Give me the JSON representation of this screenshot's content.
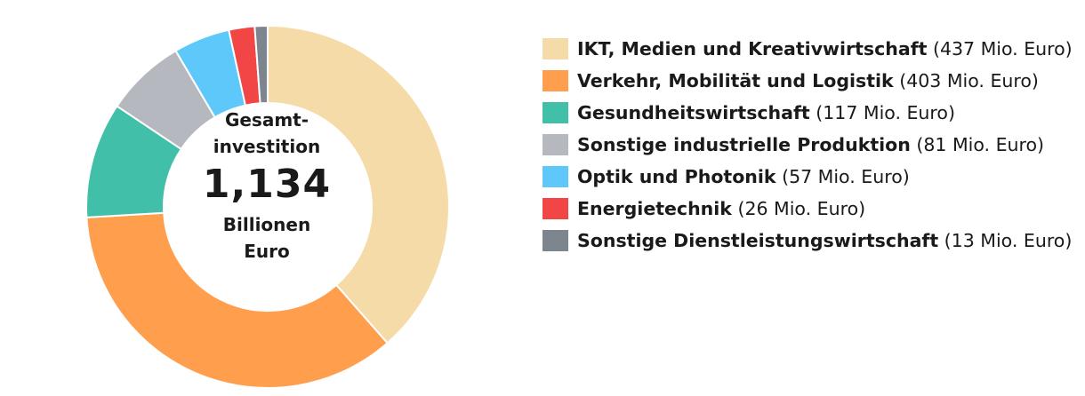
{
  "chart_data": {
    "type": "pie",
    "donut": true,
    "center": {
      "label_line1": "Gesamt-",
      "label_line2": "investition",
      "value": "1,134",
      "unit_line1": "Billionen",
      "unit_line2": "Euro"
    },
    "legend_position": "right",
    "series": [
      {
        "name": "IKT, Medien und Kreativwirtschaft",
        "value": 437,
        "value_label": "(437 Mio. Euro)",
        "color": "#F5DBA8"
      },
      {
        "name": "Verkehr, Mobilität und Logistik",
        "value": 403,
        "value_label": "(403 Mio. Euro)",
        "color": "#FF9E4C"
      },
      {
        "name": "Gesundheitswirtschaft",
        "value": 117,
        "value_label": "(117 Mio. Euro)",
        "color": "#42BFA8"
      },
      {
        "name": "Sonstige industrielle Produktion",
        "value": 81,
        "value_label": "(81 Mio. Euro)",
        "color": "#B5B9BF"
      },
      {
        "name": "Optik und Photonik",
        "value": 57,
        "value_label": "(57 Mio. Euro)",
        "color": "#5FC8FA"
      },
      {
        "name": "Energietechnik",
        "value": 26,
        "value_label": "(26 Mio. Euro)",
        "color": "#F24545"
      },
      {
        "name": "Sonstige Dienstleistungswirtschaft",
        "value": 13,
        "value_label": "(13 Mio. Euro)",
        "color": "#7D868F"
      }
    ]
  }
}
